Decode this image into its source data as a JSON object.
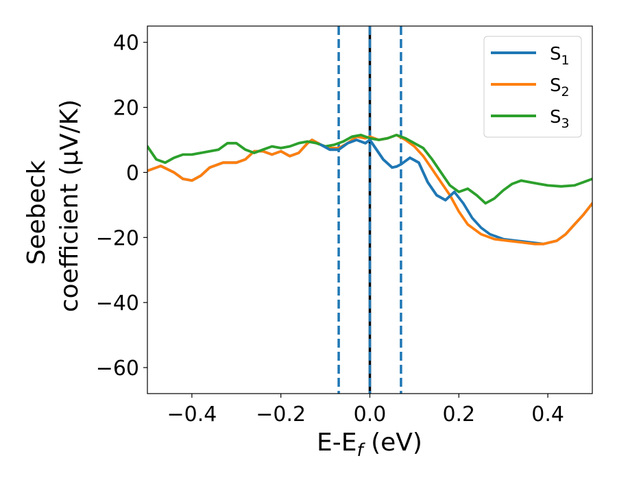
{
  "chart_data": {
    "type": "line",
    "xlabel": "E-E",
    "xlabel_sub": "f",
    "xlabel_unit": " (eV)",
    "ylabel_line1": "Seebeck",
    "ylabel_line2": "coefficient  (μV/K)",
    "xlim": [
      -0.5,
      0.5
    ],
    "ylim": [
      -68,
      45
    ],
    "xticks": [
      -0.4,
      -0.2,
      0.0,
      0.2,
      0.4
    ],
    "xtick_labels": [
      "−0.4",
      "−0.2",
      "0.0",
      "0.2",
      "0.4"
    ],
    "yticks": [
      40,
      20,
      0,
      -20,
      -40,
      -60
    ],
    "ytick_labels": [
      "40",
      "20",
      "0",
      "−20",
      "−40",
      "−60"
    ],
    "grid": false,
    "legend_position": "top-right",
    "vertical_lines": [
      {
        "x": 0.0,
        "color": "#000000",
        "style": "solid"
      },
      {
        "x": -0.07,
        "color": "#1f77b4",
        "style": "dashed"
      },
      {
        "x": 0.0,
        "color": "#1f77b4",
        "style": "dashed"
      },
      {
        "x": 0.07,
        "color": "#1f77b4",
        "style": "dashed"
      }
    ],
    "series": [
      {
        "name": "S",
        "sub": "1",
        "color": "#1f77b4",
        "x": [
          -0.5,
          -0.47,
          -0.44,
          -0.42,
          -0.4,
          -0.38,
          -0.36,
          -0.33,
          -0.3,
          -0.28,
          -0.26,
          -0.24,
          -0.22,
          -0.2,
          -0.18,
          -0.16,
          -0.14,
          -0.13,
          -0.11,
          -0.09,
          -0.07,
          -0.05,
          -0.03,
          -0.01,
          0.0,
          0.01,
          0.03,
          0.05,
          0.06,
          0.07,
          0.09,
          0.11,
          0.13,
          0.15,
          0.17,
          0.19,
          0.21,
          0.23,
          0.25,
          0.27,
          0.3,
          0.33,
          0.36,
          0.39,
          0.42,
          0.44,
          0.46,
          0.48,
          0.5
        ],
        "y": [
          0.5,
          2,
          0,
          -2,
          -2.5,
          -1,
          1.5,
          3,
          3,
          4,
          6.5,
          6.5,
          5.5,
          6.5,
          5,
          6,
          9,
          10,
          8.5,
          7,
          7,
          9,
          10,
          9,
          10,
          8,
          4,
          1.5,
          1.8,
          2.5,
          4.5,
          3,
          -3,
          -7,
          -8.5,
          -6,
          -9.5,
          -14,
          -17,
          -19,
          -20.5,
          -21,
          -21.5,
          -22,
          -21,
          -19,
          -16,
          -13,
          -9.5
        ]
      },
      {
        "name": "S",
        "sub": "2",
        "color": "#ff7f0e",
        "x": [
          -0.5,
          -0.47,
          -0.44,
          -0.42,
          -0.4,
          -0.38,
          -0.36,
          -0.33,
          -0.3,
          -0.28,
          -0.26,
          -0.24,
          -0.22,
          -0.2,
          -0.18,
          -0.16,
          -0.14,
          -0.13,
          -0.11,
          -0.09,
          -0.07,
          -0.05,
          -0.03,
          -0.01,
          0.0,
          0.02,
          0.04,
          0.06,
          0.08,
          0.1,
          0.12,
          0.14,
          0.16,
          0.18,
          0.2,
          0.22,
          0.25,
          0.28,
          0.31,
          0.34,
          0.37,
          0.39,
          0.42,
          0.44,
          0.46,
          0.48,
          0.5
        ],
        "y": [
          0.5,
          2,
          0,
          -2,
          -2.5,
          -1,
          1.5,
          3,
          3,
          4,
          6.5,
          6.5,
          5.5,
          6.5,
          5,
          6,
          9,
          10,
          8.5,
          7.5,
          7.5,
          9,
          11,
          10.5,
          11,
          10,
          10.5,
          11.5,
          10,
          8,
          5,
          1,
          -3,
          -7,
          -12,
          -16,
          -19,
          -20.5,
          -21,
          -21.5,
          -22,
          -22,
          -21,
          -19,
          -16,
          -13,
          -9.5
        ]
      },
      {
        "name": "S",
        "sub": "3",
        "color": "#2ca02c",
        "x": [
          -0.5,
          -0.48,
          -0.46,
          -0.44,
          -0.42,
          -0.4,
          -0.38,
          -0.36,
          -0.34,
          -0.32,
          -0.3,
          -0.28,
          -0.26,
          -0.24,
          -0.22,
          -0.2,
          -0.18,
          -0.16,
          -0.14,
          -0.12,
          -0.1,
          -0.08,
          -0.06,
          -0.04,
          -0.02,
          0.0,
          0.02,
          0.04,
          0.06,
          0.08,
          0.1,
          0.12,
          0.14,
          0.16,
          0.18,
          0.2,
          0.22,
          0.24,
          0.26,
          0.28,
          0.3,
          0.32,
          0.34,
          0.36,
          0.38,
          0.4,
          0.43,
          0.46,
          0.48,
          0.5
        ],
        "y": [
          8,
          4,
          3,
          4.5,
          5.5,
          5.5,
          6,
          6.5,
          7,
          9,
          9,
          7,
          6,
          7,
          8,
          7.5,
          8,
          9,
          9.5,
          9,
          8,
          8.5,
          9.5,
          11,
          11.5,
          10.5,
          10,
          10.5,
          11.5,
          10.5,
          9,
          7.5,
          4,
          0,
          -4,
          -6,
          -5,
          -7,
          -9.5,
          -8,
          -5.5,
          -3.5,
          -2.5,
          -3,
          -3.5,
          -4,
          -4.3,
          -4,
          -3,
          -2
        ]
      }
    ]
  }
}
